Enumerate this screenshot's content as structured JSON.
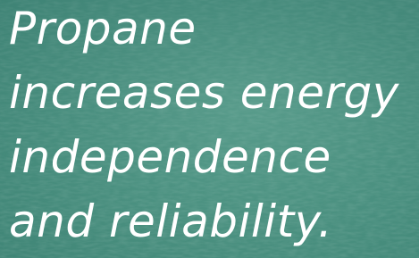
{
  "headline": {
    "lines": [
      "Propane",
      "increases energy",
      "independence",
      "and reliability."
    ]
  }
}
